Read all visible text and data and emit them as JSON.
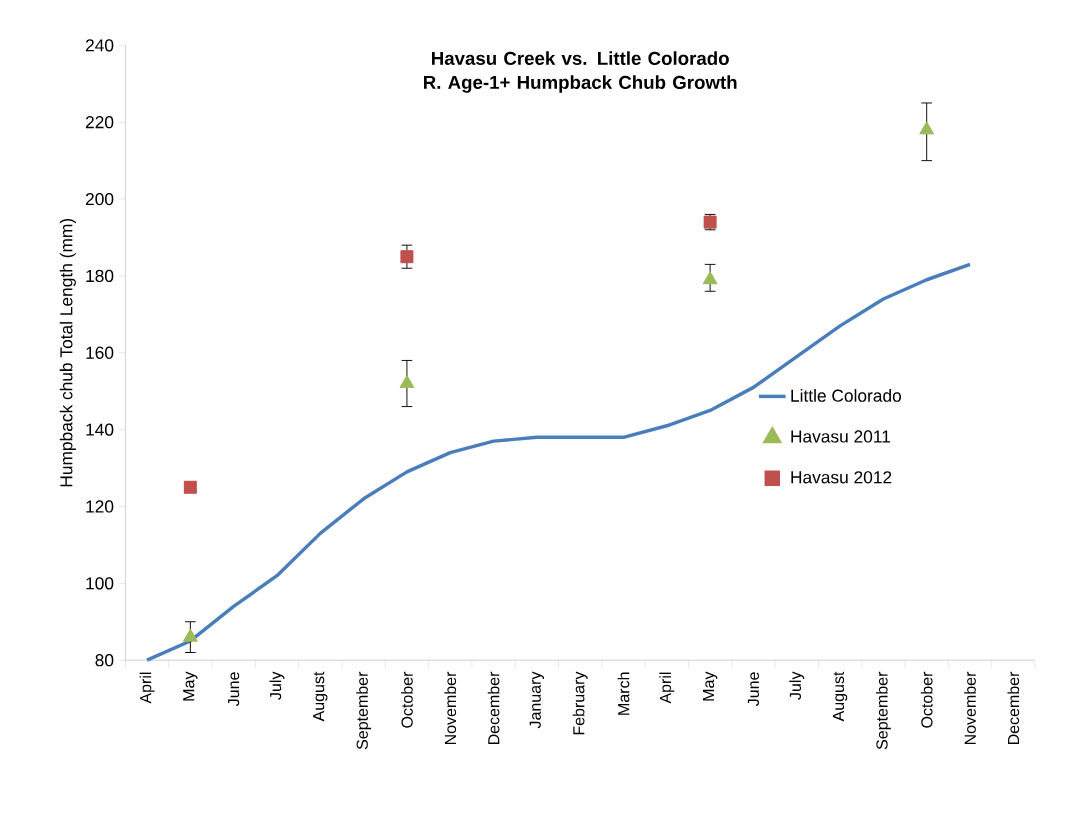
{
  "chart_data": {
    "type": "line",
    "title": "Havasu Creek vs. Little Colorado R. Age-1+ Humpback Chub Growth",
    "ylabel": "Humpback chub Total Length (mm)",
    "categories": [
      "April",
      "May",
      "June",
      "July",
      "August",
      "September",
      "October",
      "November",
      "December",
      "January",
      "February",
      "March",
      "April",
      "May",
      "June",
      "July",
      "August",
      "September",
      "October",
      "November",
      "December"
    ],
    "ylim": [
      80,
      240
    ],
    "yticks": [
      80,
      100,
      120,
      140,
      160,
      180,
      200,
      220,
      240
    ],
    "legend": "right",
    "series": [
      {
        "name": "Little Colorado",
        "marker": "none",
        "color": "#4a7ebb",
        "values": [
          80,
          85,
          94,
          102,
          113,
          122,
          129,
          134,
          137,
          138,
          138,
          138,
          141,
          145,
          151,
          159,
          167,
          174,
          179,
          183,
          null
        ]
      },
      {
        "name": "Havasu 2011",
        "type": "scatter",
        "marker": "triangle",
        "color": "#9bbb59",
        "values": [
          null,
          86,
          null,
          null,
          null,
          null,
          152,
          null,
          null,
          null,
          null,
          null,
          null,
          179,
          null,
          null,
          null,
          null,
          218,
          null,
          null
        ],
        "errors": [
          null,
          [
            82,
            90
          ],
          null,
          null,
          null,
          null,
          [
            146,
            158
          ],
          null,
          null,
          null,
          null,
          null,
          null,
          [
            176,
            183
          ],
          null,
          null,
          null,
          null,
          [
            210,
            225
          ],
          null,
          null
        ]
      },
      {
        "name": "Havasu 2012",
        "type": "scatter",
        "marker": "square",
        "color": "#c0504d",
        "values": [
          null,
          125,
          null,
          null,
          null,
          null,
          185,
          null,
          null,
          null,
          null,
          null,
          null,
          194,
          null,
          null,
          null,
          null,
          null,
          null,
          null
        ],
        "errors": [
          null,
          null,
          null,
          null,
          null,
          null,
          [
            182,
            188
          ],
          null,
          null,
          null,
          null,
          null,
          null,
          [
            192,
            196
          ],
          null,
          null,
          null,
          null,
          null,
          null,
          null
        ]
      }
    ]
  }
}
